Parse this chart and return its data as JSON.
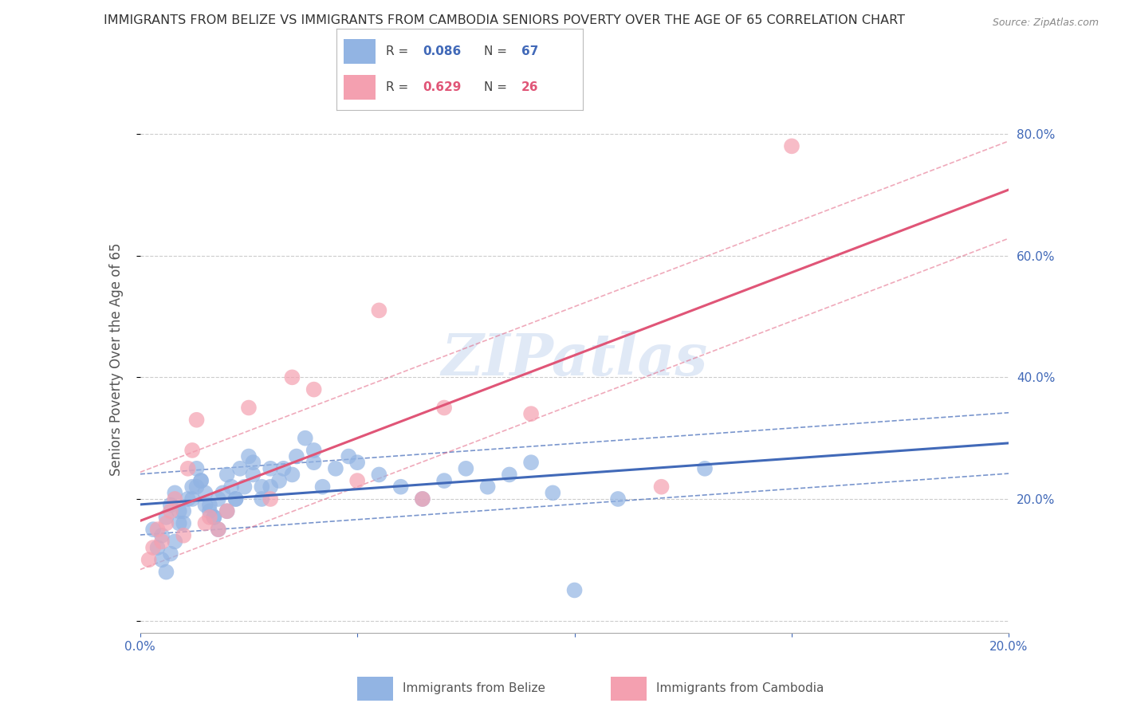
{
  "title": "IMMIGRANTS FROM BELIZE VS IMMIGRANTS FROM CAMBODIA SENIORS POVERTY OVER THE AGE OF 65 CORRELATION CHART",
  "source": "Source: ZipAtlas.com",
  "ylabel": "Seniors Poverty Over the Age of 65",
  "xlim": [
    0.0,
    0.2
  ],
  "ylim": [
    -0.02,
    0.88
  ],
  "yticks": [
    0.0,
    0.2,
    0.4,
    0.6,
    0.8
  ],
  "xticks": [
    0.0,
    0.05,
    0.1,
    0.15,
    0.2
  ],
  "xtick_labels": [
    "0.0%",
    "",
    "",
    "",
    "20.0%"
  ],
  "ytick_labels_right": [
    "",
    "20.0%",
    "40.0%",
    "60.0%",
    "80.0%"
  ],
  "belize_R": 0.086,
  "belize_N": 67,
  "cambodia_R": 0.629,
  "cambodia_N": 26,
  "belize_color": "#92b4e3",
  "cambodia_color": "#f4a0b0",
  "belize_line_color": "#4169b8",
  "cambodia_line_color": "#e05577",
  "belize_x": [
    0.003,
    0.004,
    0.005,
    0.006,
    0.007,
    0.008,
    0.009,
    0.01,
    0.012,
    0.013,
    0.014,
    0.015,
    0.016,
    0.017,
    0.018,
    0.019,
    0.02,
    0.021,
    0.022,
    0.023,
    0.025,
    0.026,
    0.028,
    0.03,
    0.032,
    0.035,
    0.04,
    0.042,
    0.045,
    0.048,
    0.005,
    0.006,
    0.007,
    0.008,
    0.009,
    0.01,
    0.011,
    0.012,
    0.013,
    0.014,
    0.015,
    0.016,
    0.017,
    0.018,
    0.02,
    0.022,
    0.024,
    0.026,
    0.028,
    0.03,
    0.033,
    0.036,
    0.038,
    0.04,
    0.05,
    0.055,
    0.06,
    0.065,
    0.07,
    0.075,
    0.08,
    0.085,
    0.09,
    0.095,
    0.1,
    0.11,
    0.13
  ],
  "belize_y": [
    0.15,
    0.12,
    0.14,
    0.17,
    0.19,
    0.21,
    0.18,
    0.16,
    0.2,
    0.22,
    0.23,
    0.19,
    0.18,
    0.17,
    0.2,
    0.21,
    0.24,
    0.22,
    0.2,
    0.25,
    0.27,
    0.26,
    0.22,
    0.25,
    0.23,
    0.24,
    0.26,
    0.22,
    0.25,
    0.27,
    0.1,
    0.08,
    0.11,
    0.13,
    0.16,
    0.18,
    0.2,
    0.22,
    0.25,
    0.23,
    0.21,
    0.19,
    0.17,
    0.15,
    0.18,
    0.2,
    0.22,
    0.24,
    0.2,
    0.22,
    0.25,
    0.27,
    0.3,
    0.28,
    0.26,
    0.24,
    0.22,
    0.2,
    0.23,
    0.25,
    0.22,
    0.24,
    0.26,
    0.21,
    0.05,
    0.2,
    0.25
  ],
  "cambodia_x": [
    0.002,
    0.003,
    0.004,
    0.005,
    0.006,
    0.007,
    0.008,
    0.01,
    0.011,
    0.012,
    0.013,
    0.015,
    0.016,
    0.018,
    0.02,
    0.025,
    0.03,
    0.035,
    0.04,
    0.05,
    0.055,
    0.065,
    0.07,
    0.09,
    0.12,
    0.15
  ],
  "cambodia_y": [
    0.1,
    0.12,
    0.15,
    0.13,
    0.16,
    0.18,
    0.2,
    0.14,
    0.25,
    0.28,
    0.33,
    0.16,
    0.17,
    0.15,
    0.18,
    0.35,
    0.2,
    0.4,
    0.38,
    0.23,
    0.51,
    0.2,
    0.35,
    0.34,
    0.22,
    0.78
  ],
  "watermark": "ZIPatlas",
  "background_color": "#ffffff",
  "grid_color": "#cccccc",
  "title_color": "#333333",
  "axis_label_color": "#555555",
  "tick_color": "#4169b8"
}
